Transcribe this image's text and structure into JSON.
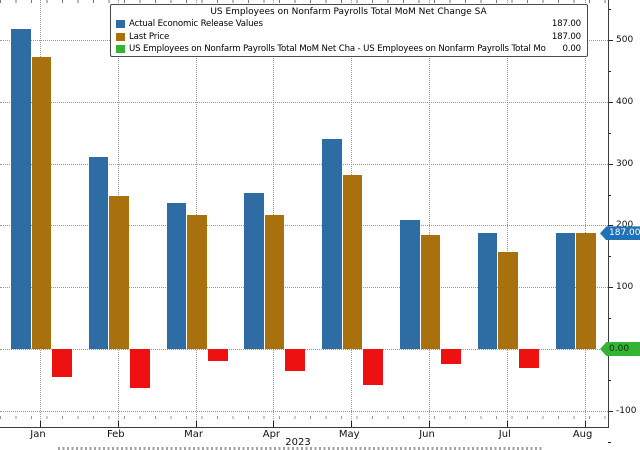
{
  "chart_data": {
    "type": "bar",
    "title": "US Employees on Nonfarm Payrolls Total MoM Net Change SA",
    "categories": [
      "Jan",
      "Feb",
      "Mar",
      "Apr",
      "May",
      "Jun",
      "Jul",
      "Aug"
    ],
    "year": "2023",
    "series": [
      {
        "name": "Actual Economic Release Values",
        "color": "#2e6da4",
        "values": [
          517,
          311,
          236,
          253,
          339,
          209,
          187,
          187
        ]
      },
      {
        "name": "Last Price",
        "color": "#a9710e",
        "values": [
          472,
          248,
          217,
          217,
          281,
          185,
          157,
          187
        ]
      },
      {
        "name": "US Employees on Nonfarm Payrolls Total MoM Net Cha - US Employees on Nonfarm Payrolls Total Mo",
        "color_negative": "#ee1111",
        "color_positive": "#33b433",
        "values": [
          -45,
          -63,
          -19,
          -36,
          -58,
          -24,
          -30,
          0
        ]
      }
    ],
    "legend_values": [
      "187.00",
      "187.00",
      "0.00"
    ],
    "y_axis": {
      "major_ticks": [
        500,
        400,
        300,
        200,
        100,
        -100
      ],
      "minor_step": 50,
      "gridline_values": [
        500,
        400,
        300,
        200,
        100,
        0,
        -100
      ],
      "range_shown": [
        -160,
        560
      ]
    },
    "axis_badges": [
      {
        "label": "187.00",
        "value": 187,
        "bg": "#2072b8",
        "fg": "#ffffff"
      },
      {
        "label": "0.00",
        "value": 0,
        "bg": "#33b433",
        "fg": "#0c2b0c"
      }
    ],
    "legend_position": "top-center",
    "grid": true
  }
}
